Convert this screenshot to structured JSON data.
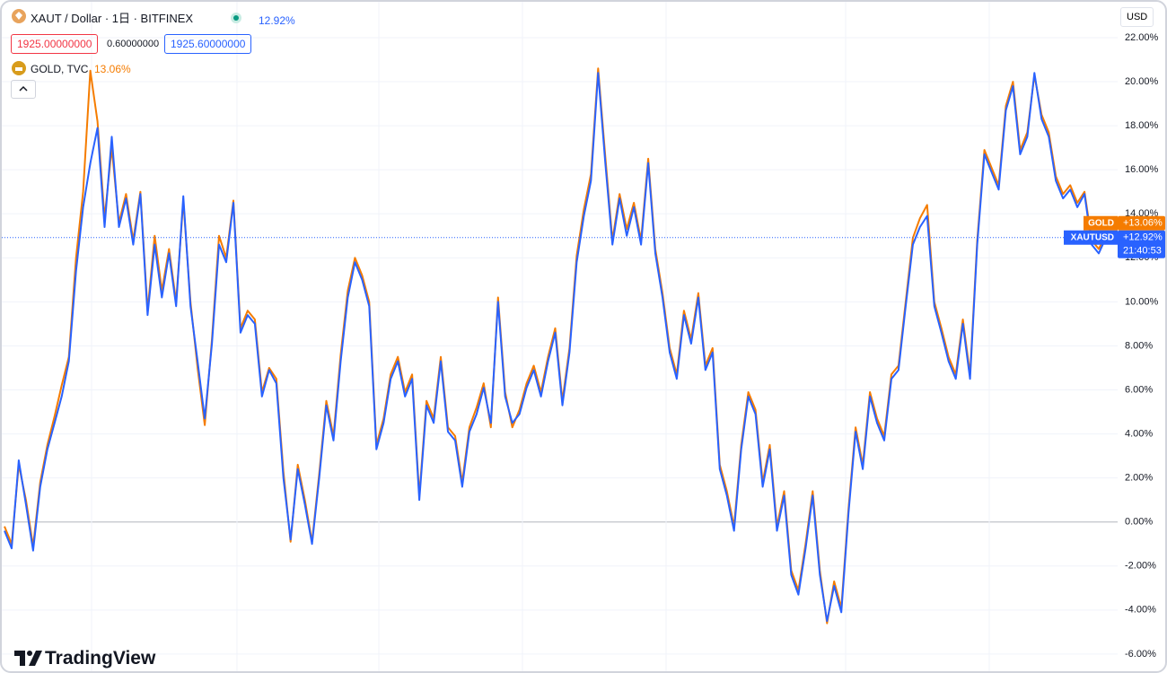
{
  "header": {
    "symbol": "XAUT / Dollar · 1日 · BITFINEX",
    "change": "12.92%",
    "bid": "1925.00000000",
    "spread": "0.60000000",
    "ask": "1925.60000000",
    "compare_symbol": "GOLD, TVC",
    "compare_change": "13.06%",
    "currency": "USD",
    "logo": "TradingView"
  },
  "chart_data": {
    "type": "line",
    "series": [
      {
        "name": "GOLD",
        "color": "#f57c00",
        "last_value_label": "+13.06%",
        "values": [
          -0.2,
          -1.0,
          2.6,
          1.0,
          -1.1,
          1.8,
          3.5,
          4.8,
          6.2,
          7.5,
          12.0,
          15.0,
          20.5,
          18.2,
          13.8,
          17.0,
          13.6,
          14.9,
          12.8,
          15.0,
          9.6,
          13.0,
          10.5,
          12.4,
          10.0,
          14.6,
          10.0,
          7.0,
          4.4,
          8.3,
          13.0,
          12.0,
          14.6,
          8.8,
          9.6,
          9.2,
          5.9,
          7.0,
          6.5,
          2.3,
          -0.9,
          2.6,
          1.0,
          -0.9,
          2.2,
          5.5,
          3.9,
          7.6,
          10.5,
          12.0,
          11.2,
          10.0,
          3.5,
          4.7,
          6.7,
          7.5,
          5.9,
          6.7,
          1.2,
          5.5,
          4.7,
          7.5,
          4.3,
          3.9,
          1.8,
          4.3,
          5.2,
          6.3,
          4.3,
          10.2,
          5.9,
          4.3,
          5.1,
          6.3,
          7.1,
          5.9,
          7.5,
          8.8,
          5.5,
          7.9,
          12.1,
          14.2,
          15.8,
          20.6,
          16.6,
          12.8,
          14.9,
          13.3,
          14.5,
          12.8,
          16.5,
          12.4,
          10.4,
          7.9,
          6.7,
          9.6,
          8.3,
          10.4,
          7.1,
          7.9,
          2.6,
          1.4,
          -0.2,
          3.5,
          5.9,
          5.1,
          1.8,
          3.5,
          -0.2,
          1.4,
          -2.2,
          -3.1,
          -1.0,
          1.4,
          -2.2,
          -4.6,
          -2.7,
          -3.9,
          0.6,
          4.3,
          2.6,
          5.9,
          4.7,
          3.9,
          6.7,
          7.1,
          10.0,
          12.9,
          13.8,
          14.4,
          10.0,
          8.8,
          7.5,
          6.7,
          9.2,
          6.7,
          12.8,
          16.9,
          16.1,
          15.3,
          18.9,
          20.0,
          16.9,
          17.7,
          20.3,
          18.5,
          17.7,
          15.7,
          14.9,
          15.3,
          14.5,
          15.0,
          12.8,
          12.4,
          13.06
        ]
      },
      {
        "name": "XAUTUSD",
        "color": "#2962ff",
        "last_value_label": "+12.92%",
        "time_label": "21:40:53",
        "values": [
          -0.4,
          -1.2,
          2.8,
          0.8,
          -1.3,
          1.6,
          3.3,
          4.5,
          5.7,
          7.3,
          11.4,
          14.3,
          16.3,
          17.9,
          13.4,
          17.5,
          13.4,
          14.7,
          12.6,
          14.9,
          9.4,
          12.6,
          10.2,
          12.2,
          9.8,
          14.8,
          9.8,
          7.3,
          4.7,
          8.1,
          12.6,
          11.8,
          14.5,
          8.6,
          9.4,
          9.0,
          5.7,
          6.9,
          6.3,
          2.0,
          -0.8,
          2.4,
          0.8,
          -1.0,
          2.0,
          5.3,
          3.7,
          7.3,
          10.2,
          11.8,
          11.0,
          9.8,
          3.3,
          4.5,
          6.5,
          7.3,
          5.7,
          6.5,
          1.0,
          5.3,
          4.5,
          7.3,
          4.1,
          3.7,
          1.6,
          4.1,
          4.9,
          6.1,
          4.5,
          10.0,
          5.7,
          4.5,
          4.9,
          6.1,
          6.9,
          5.7,
          7.3,
          8.6,
          5.3,
          7.7,
          11.8,
          13.9,
          15.5,
          20.4,
          16.3,
          12.6,
          14.7,
          13.0,
          14.3,
          12.6,
          16.3,
          12.2,
          10.2,
          7.7,
          6.5,
          9.4,
          8.1,
          10.2,
          6.9,
          7.7,
          2.4,
          1.2,
          -0.4,
          3.3,
          5.7,
          4.9,
          1.6,
          3.3,
          -0.4,
          1.2,
          -2.4,
          -3.3,
          -1.2,
          1.2,
          -2.4,
          -4.5,
          -2.9,
          -4.1,
          0.4,
          4.1,
          2.4,
          5.7,
          4.5,
          3.7,
          6.5,
          6.9,
          9.8,
          12.6,
          13.4,
          13.9,
          9.8,
          8.6,
          7.3,
          6.5,
          9.0,
          6.5,
          12.6,
          16.7,
          15.9,
          15.1,
          18.7,
          19.8,
          16.7,
          17.5,
          20.4,
          18.3,
          17.5,
          15.5,
          14.7,
          15.1,
          14.3,
          14.9,
          12.6,
          12.2,
          12.92
        ]
      }
    ],
    "ylim": [
      -6.86,
      23.63
    ],
    "yticks": [
      {
        "value": 22,
        "label": "22.00%"
      },
      {
        "value": 20,
        "label": "20.00%"
      },
      {
        "value": 18,
        "label": "18.00%"
      },
      {
        "value": 16,
        "label": "16.00%"
      },
      {
        "value": 14,
        "label": "14.00%"
      },
      {
        "value": 12,
        "label": "12.00%"
      },
      {
        "value": 10,
        "label": "10.00%"
      },
      {
        "value": 8,
        "label": "8.00%"
      },
      {
        "value": 6,
        "label": "6.00%"
      },
      {
        "value": 4,
        "label": "4.00%"
      },
      {
        "value": 2,
        "label": "2.00%"
      },
      {
        "value": 0,
        "label": "0.00%"
      },
      {
        "value": -2,
        "label": "-2.00%"
      },
      {
        "value": -4,
        "label": "-4.00%"
      },
      {
        "value": -6,
        "label": "-6.00%"
      }
    ],
    "grid": true
  }
}
